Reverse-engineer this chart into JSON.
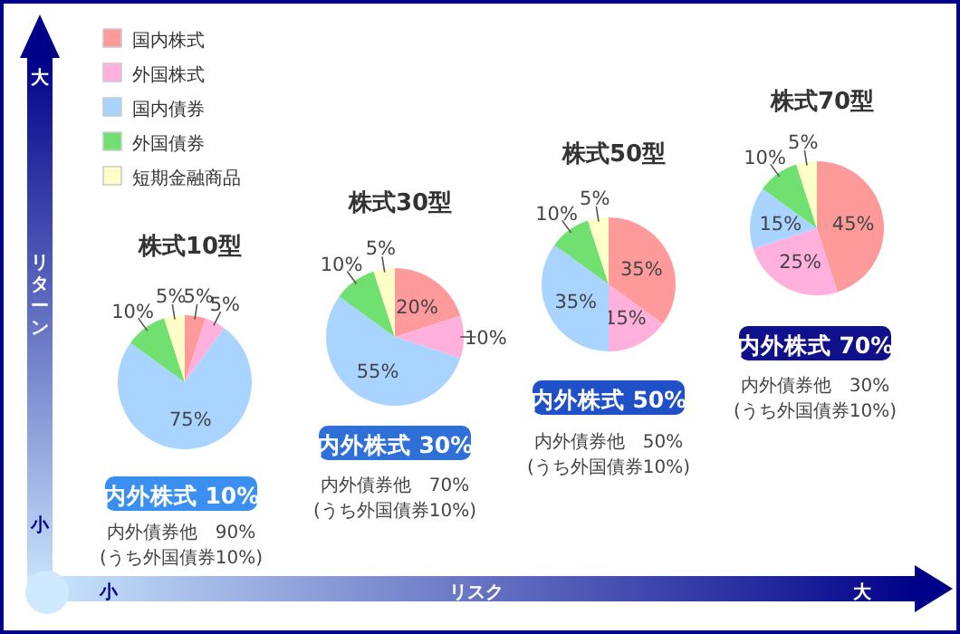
{
  "chart_data": [
    {
      "type": "pie",
      "title": "株式10型",
      "categories": [
        "国内株式",
        "外国株式",
        "国内債券",
        "外国債券",
        "短期金融商品"
      ],
      "values": [
        5,
        5,
        75,
        10,
        5
      ],
      "colors": [
        "#ff9a9a",
        "#ffb0dc",
        "#a8d4ff",
        "#70e070",
        "#ffffc8"
      ],
      "value_labels": [
        "5%",
        "5%",
        "75%",
        "10%",
        "5%"
      ],
      "legend": "top left",
      "annotations": [
        "内外株式 10%",
        "内外債券他　90%",
        "(うち外国債券10%)"
      ]
    },
    {
      "type": "pie",
      "title": "株式30型",
      "categories": [
        null,
        null,
        null,
        null,
        null
      ],
      "values": [
        20,
        10,
        55,
        10,
        5
      ],
      "colors": [
        "#ff9a9a",
        "#ffb0dc",
        "#a8d4ff",
        "#70e070",
        "#ffffc8"
      ],
      "value_labels": [
        "20%",
        "10%",
        "55%",
        "10%",
        "5%"
      ],
      "annotations": [
        "内外株式 30%",
        "内外債券他　70%",
        "(うち外国債券10%)"
      ]
    },
    {
      "type": "pie",
      "title": "株式50型",
      "categories": [
        null,
        null,
        null,
        null,
        null
      ],
      "values": [
        35,
        15,
        35,
        10,
        5
      ],
      "colors": [
        "#ff9a9a",
        "#ffb0dc",
        "#a8d4ff",
        "#70e070",
        "#ffffc8"
      ],
      "value_labels": [
        "35%",
        "15%",
        "35%",
        "10%",
        "5%"
      ],
      "annotations": [
        "内外株式 50%",
        "内外債券他　50%",
        "(うち外国債券10%)"
      ]
    },
    {
      "type": "pie",
      "title": "株式70型",
      "categories": [
        null,
        null,
        null,
        null,
        null
      ],
      "values": [
        45,
        25,
        15,
        10,
        5
      ],
      "colors": [
        "#ff9a9a",
        "#ffb0dc",
        "#a8d4ff",
        "#70e070",
        "#ffffc8"
      ],
      "value_labels": [
        "45%",
        "25%",
        "15%",
        "10%",
        "5%"
      ],
      "annotations": [
        "内外株式 70%",
        "内外債券他　30%",
        "(うち外国債券10%)"
      ]
    },
    {
      "type": "other",
      "annotations": [
        "大",
        "リターン",
        "小",
        "小",
        "リスク",
        "大"
      ]
    }
  ]
}
